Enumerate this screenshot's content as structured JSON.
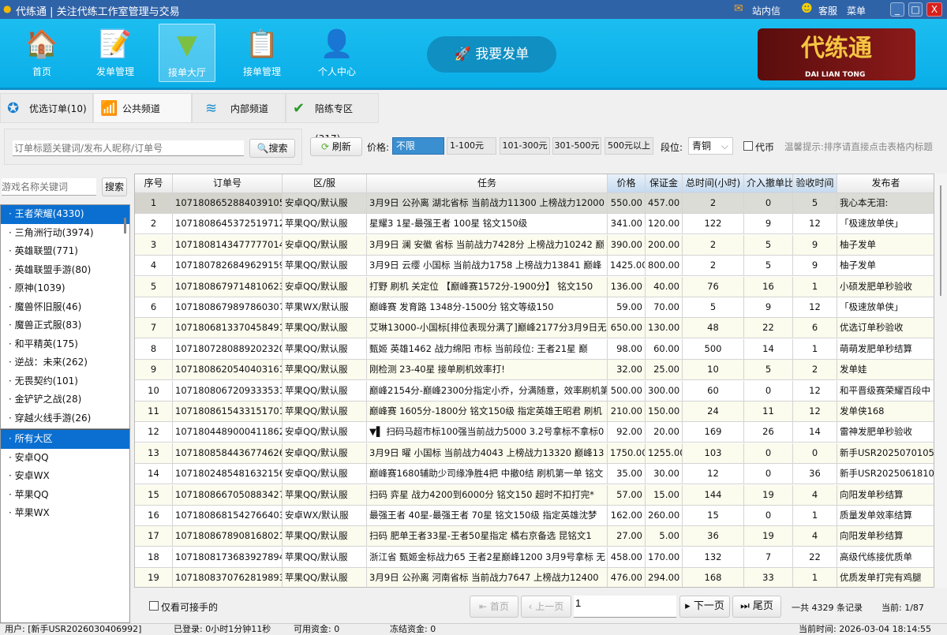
{
  "window": {
    "title": "代练通 | 关注代练工作室管理与交易",
    "mail": "站内信",
    "service": "客服",
    "menu": "菜单"
  },
  "nav": [
    {
      "label": "首页",
      "icon": "home-icon"
    },
    {
      "label": "发单管理",
      "icon": "document-pen-icon"
    },
    {
      "label": "接单大厅",
      "icon": "download-tray-icon"
    },
    {
      "label": "接单管理",
      "icon": "clipboard-check-icon"
    },
    {
      "label": "个人中心",
      "icon": "user-icon"
    }
  ],
  "post_button": "我要发单",
  "logo": {
    "text": "代练通",
    "sub": "DAI LIAN TONG"
  },
  "tabs": [
    {
      "label": "优选订单(10)"
    },
    {
      "label": "公共频道(16075)"
    },
    {
      "label": "内部频道"
    },
    {
      "label": "陪练专区(317)"
    }
  ],
  "search": {
    "placeholder": "订单标题关键词/发布人昵称/订单号",
    "button": "搜索",
    "refresh": "刷新"
  },
  "filters": {
    "price_label": "价格:",
    "prices": [
      "不限",
      "1-100元",
      "101-300元",
      "301-500元",
      "500元以上"
    ],
    "selected_price": "不限",
    "rank_label": "段位:",
    "rank_value": "青铜",
    "coin_label": "代币",
    "tip": "温馨提示:排序请直接点击表格内标题"
  },
  "game_search": {
    "placeholder": "游戏名称关键词",
    "button": "搜索"
  },
  "games": [
    "王者荣耀(4330)",
    "三角洲行动(3974)",
    "英雄联盟(771)",
    "英雄联盟手游(80)",
    "原神(1039)",
    "魔兽怀旧服(46)",
    "魔兽正式服(83)",
    "和平精英(175)",
    "逆战：未来(262)",
    "无畏契约(101)",
    "金铲铲之战(28)",
    "穿越火线手游(26)"
  ],
  "regions": [
    "所有大区",
    "安卓QQ",
    "安卓WX",
    "苹果QQ",
    "苹果WX"
  ],
  "table": {
    "columns": [
      "序号",
      "订单号",
      "区/服",
      "任务",
      "价格",
      "保证金",
      "总时间(小时)",
      "介入撤单比",
      "验收时间",
      "发布者"
    ],
    "rows": [
      [
        "1",
        "10718086528840391050",
        "安卓QQ/默认服",
        "3月9日 公孙离 湖北省标 当前战力11300 上榜战力12000",
        "550.00",
        "457.00",
        "2",
        "0",
        "5",
        "我心本无泪:"
      ],
      [
        "2",
        "10718086453725197121",
        "苹果QQ/默认服",
        "星耀3 1星-最强王者 100星 铭文150级",
        "341.00",
        "120.00",
        "122",
        "9",
        "12",
        "「极速放单侠」"
      ],
      [
        "3",
        "10718081434777770149",
        "安卓QQ/默认服",
        "3月9日 澜 安徽 省标 当前战力7428分 上榜战力10242 巅",
        "390.00",
        "200.00",
        "2",
        "5",
        "9",
        "柚子发单"
      ],
      [
        "4",
        "10718078268496291590",
        "苹果QQ/默认服",
        "3月9日 云缨 小国标 当前战力1758 上榜战力13841 巅峰",
        "1425.00",
        "800.00",
        "2",
        "5",
        "9",
        "柚子发单"
      ],
      [
        "5",
        "10718086797148106230",
        "安卓QQ/默认服",
        " 打野 刷机 关定位 【巅峰赛1572分-1900分】 铭文150",
        "136.00",
        "40.00",
        "76",
        "16",
        "1",
        "小硕发肥单秒验收"
      ],
      [
        "6",
        "10718086798978603076",
        "苹果WX/默认服",
        "巅峰赛 发育路 1348分-1500分 铭文等级150",
        "59.00",
        "70.00",
        "5",
        "9",
        "12",
        "「极速放单侠」"
      ],
      [
        "7",
        "10718068133704584914",
        "苹果QQ/默认服",
        "艾琳13000-小国标[排位表现分满了]巅峰2177分3月9日无",
        "650.00",
        "130.00",
        "48",
        "22",
        "6",
        "优选订单秒验收"
      ],
      [
        "8",
        "10718072808892023207",
        "苹果QQ/默认服",
        "甄姬 英雄1462 战力绵阳 市标 当前段位: 王者21星  巅",
        "98.00",
        "60.00",
        "500",
        "14",
        "1",
        "萌萌发肥单秒结算"
      ],
      [
        "9",
        "10718086205404031610",
        "苹果QQ/默认服",
        "刚检测  23-40星    接单刷机效率打!",
        "32.00",
        "25.00",
        "10",
        "5",
        "2",
        "发单娃"
      ],
      [
        "10",
        "10718080672093335317",
        "苹果QQ/默认服",
        "巅峰2154分-巅峰2300分指定小乔，分满随意，效率刷机第",
        "500.00",
        "300.00",
        "60",
        "0",
        "12",
        "和平晋级赛荣耀百段中"
      ],
      [
        "11",
        "10718086154331517014",
        "苹果QQ/默认服",
        "巅峰赛 1605分-1800分 铭文150级 指定英雄王昭君 刷机",
        "210.00",
        "150.00",
        "24",
        "11",
        "12",
        "发单侠168"
      ],
      [
        "12",
        "10718044890004118623",
        "安卓QQ/默认服",
        "▼▌ 扫码马超市标100强当前战力5000 3.2号拿标不拿标0",
        "92.00",
        "20.00",
        "169",
        "26",
        "14",
        "雷神发肥单秒验收"
      ],
      [
        "13",
        "10718085844367746261",
        "安卓QQ/默认服",
        "3月9日 曜 小国标 当前战力4043 上榜战力13320 巅峰13",
        "1750.00",
        "1255.00",
        "103",
        "0",
        "0",
        "新手USR2025070105972"
      ],
      [
        "14",
        "10718024854816321565",
        "安卓QQ/默认服",
        "巅峰赛1680辅助少司缘净胜4把 中撤0结 刷机第一单 铭文",
        "35.00",
        "30.00",
        "12",
        "0",
        "36",
        "新手USR20250618100"
      ],
      [
        "15",
        "10718086670508834270",
        "苹果QQ/默认服",
        "扫码 弈星 战力4200到6000分  铭文150 超时不扣打完*",
        "57.00",
        "15.00",
        "144",
        "19",
        "4",
        "向阳发单秒结算"
      ],
      [
        "16",
        "10718086815427664034",
        "安卓WX/默认服",
        "最强王者 40星-最强王者 70星 铭文150级 指定英雄沈梦",
        "162.00",
        "260.00",
        "15",
        "0",
        "1",
        "质量发单效率结算"
      ],
      [
        "17",
        "10718086789081680213",
        "苹果QQ/默认服",
        "扫码 肥单王者33星-王者50星指定  橘右京备选 昆铭文1",
        "27.00",
        "5.00",
        "36",
        "19",
        "4",
        "向阳发单秒结算"
      ],
      [
        "18",
        "10718081736839278943",
        "苹果QQ/默认服",
        "浙江省 甄姬金标战力65 王者2星巅峰1200 3月9号拿标 无",
        "458.00",
        "170.00",
        "132",
        "7",
        "22",
        "高级代练接优质单"
      ],
      [
        "19",
        "10718083707628198937",
        "苹果QQ/默认服",
        "3月9日 公孙离 河南省标 当前战力7647 上榜战力12400",
        "476.00",
        "294.00",
        "168",
        "33",
        "1",
        "优质发单打完有鸡腿"
      ]
    ]
  },
  "pager": {
    "only_takeable": "仅看可接手的",
    "first": "首页",
    "prev": "上一页",
    "page_input": "1",
    "next": "下一页",
    "last": "尾页",
    "total": "一共 4329 条记录",
    "current": "当前: 1/87"
  },
  "status": {
    "user": "用户: [新手USR2026030406992]",
    "logged": "已登录: 0小时1分钟11秒",
    "available": "可用资金: 0",
    "frozen": "冻结资金: 0",
    "time": "当前时间: 2026-03-04 18:14:55"
  },
  "colors": {
    "accent": "#0a6fd0",
    "banner": "#1cbef0",
    "titlebar": "#2f63a8"
  }
}
